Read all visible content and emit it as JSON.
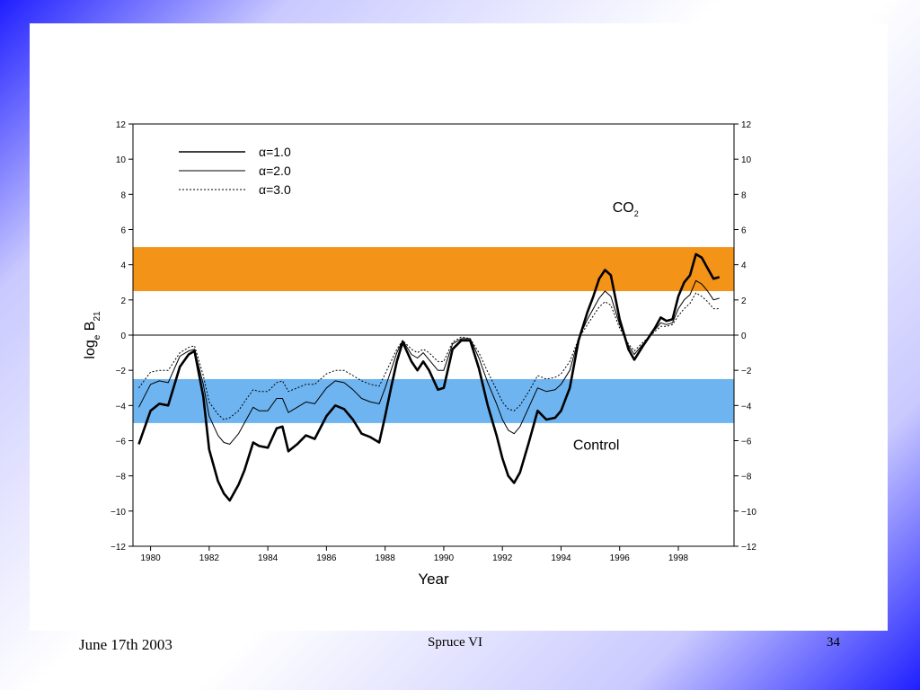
{
  "footer": {
    "date": "June 17th 2003",
    "center": "Spruce  VI",
    "page": "34"
  },
  "colors": {
    "band_high": "#F39317",
    "band_low": "#6EB4F0",
    "background_gradient": "#1f1fff"
  },
  "chart_data": {
    "type": "line",
    "title": "",
    "xlabel": "Year",
    "ylabel_parts": {
      "main": "log",
      "sub1": "e",
      "mid": " B",
      "sub2": "21"
    },
    "xlim": [
      1979.4,
      1999.9
    ],
    "ylim": [
      -12,
      12
    ],
    "x_ticks": [
      1980,
      1982,
      1984,
      1986,
      1988,
      1990,
      1992,
      1994,
      1996,
      1998
    ],
    "y_ticks": [
      -12,
      -10,
      -8,
      -6,
      -4,
      -2,
      0,
      2,
      4,
      6,
      8,
      10,
      12
    ],
    "grid": false,
    "legend_position": "top-left",
    "bands": [
      {
        "from": 2.5,
        "to": 5.0,
        "color": "#F39317"
      },
      {
        "from": -5.0,
        "to": -2.5,
        "color": "#6EB4F0"
      }
    ],
    "annotations": [
      {
        "main": "CO",
        "sub": "2",
        "x": 1996.2,
        "y": 7.0
      },
      {
        "main": "Control",
        "x": 1995.2,
        "y": -6.5
      }
    ],
    "series": [
      {
        "name": "α=1.0",
        "style": "thick",
        "x": [
          1979.6,
          1980.0,
          1980.3,
          1980.6,
          1981.0,
          1981.3,
          1981.5,
          1981.8,
          1982.0,
          1982.3,
          1982.5,
          1982.7,
          1983.0,
          1983.2,
          1983.5,
          1983.7,
          1984.0,
          1984.3,
          1984.5,
          1984.7,
          1985.0,
          1985.3,
          1985.6,
          1986.0,
          1986.3,
          1986.6,
          1986.9,
          1987.2,
          1987.5,
          1987.8,
          1988.0,
          1988.2,
          1988.4,
          1988.6,
          1988.9,
          1989.1,
          1989.3,
          1989.5,
          1989.8,
          1990.0,
          1990.3,
          1990.6,
          1990.9,
          1991.2,
          1991.5,
          1991.8,
          1992.0,
          1992.2,
          1992.4,
          1992.6,
          1992.9,
          1993.2,
          1993.5,
          1993.8,
          1994.0,
          1994.3,
          1994.6,
          1994.9,
          1995.1,
          1995.3,
          1995.5,
          1995.7,
          1996.0,
          1996.3,
          1996.5,
          1996.8,
          1997.0,
          1997.2,
          1997.4,
          1997.6,
          1997.8,
          1998.0,
          1998.2,
          1998.4,
          1998.6,
          1998.8,
          1999.0,
          1999.2,
          1999.4
        ],
        "y": [
          -6.2,
          -4.3,
          -3.9,
          -4.0,
          -1.8,
          -1.1,
          -0.9,
          -3.5,
          -6.5,
          -8.3,
          -9.0,
          -9.4,
          -8.5,
          -7.7,
          -6.1,
          -6.3,
          -6.4,
          -5.3,
          -5.2,
          -6.6,
          -6.2,
          -5.7,
          -5.9,
          -4.6,
          -4.0,
          -4.2,
          -4.8,
          -5.6,
          -5.8,
          -6.1,
          -4.6,
          -3.0,
          -1.5,
          -0.4,
          -1.5,
          -2.0,
          -1.5,
          -2.0,
          -3.1,
          -3.0,
          -0.8,
          -0.3,
          -0.3,
          -1.9,
          -4.0,
          -5.7,
          -7.0,
          -8.0,
          -8.4,
          -7.8,
          -6.1,
          -4.3,
          -4.8,
          -4.7,
          -4.3,
          -3.0,
          -0.3,
          1.3,
          2.2,
          3.2,
          3.7,
          3.4,
          0.9,
          -0.8,
          -1.4,
          -0.6,
          -0.1,
          0.4,
          1.0,
          0.8,
          0.9,
          2.2,
          3.0,
          3.4,
          4.6,
          4.4,
          3.8,
          3.2,
          3.3
        ]
      },
      {
        "name": "α=2.0",
        "style": "thin",
        "x": [
          1979.6,
          1980.0,
          1980.3,
          1980.6,
          1981.0,
          1981.3,
          1981.5,
          1981.8,
          1982.0,
          1982.3,
          1982.5,
          1982.7,
          1983.0,
          1983.2,
          1983.5,
          1983.7,
          1984.0,
          1984.3,
          1984.5,
          1984.7,
          1985.0,
          1985.3,
          1985.6,
          1986.0,
          1986.3,
          1986.6,
          1986.9,
          1987.2,
          1987.5,
          1987.8,
          1988.0,
          1988.2,
          1988.4,
          1988.6,
          1988.9,
          1989.1,
          1989.3,
          1989.5,
          1989.8,
          1990.0,
          1990.3,
          1990.6,
          1990.9,
          1991.2,
          1991.5,
          1991.8,
          1992.0,
          1992.2,
          1992.4,
          1992.6,
          1992.9,
          1993.2,
          1993.5,
          1993.8,
          1994.0,
          1994.3,
          1994.6,
          1994.9,
          1995.1,
          1995.3,
          1995.5,
          1995.7,
          1996.0,
          1996.3,
          1996.5,
          1996.8,
          1997.0,
          1997.2,
          1997.4,
          1997.6,
          1997.8,
          1998.0,
          1998.2,
          1998.4,
          1998.6,
          1998.8,
          1999.0,
          1999.2,
          1999.4
        ],
        "y": [
          -4.1,
          -2.8,
          -2.6,
          -2.7,
          -1.2,
          -0.9,
          -0.8,
          -2.8,
          -4.6,
          -5.7,
          -6.1,
          -6.2,
          -5.6,
          -5.0,
          -4.1,
          -4.3,
          -4.3,
          -3.6,
          -3.6,
          -4.4,
          -4.1,
          -3.8,
          -3.9,
          -3.0,
          -2.6,
          -2.7,
          -3.1,
          -3.6,
          -3.8,
          -3.9,
          -3.0,
          -2.0,
          -1.0,
          -0.3,
          -1.1,
          -1.3,
          -1.0,
          -1.4,
          -2.0,
          -2.0,
          -0.5,
          -0.2,
          -0.2,
          -1.3,
          -2.7,
          -3.9,
          -4.8,
          -5.4,
          -5.6,
          -5.2,
          -4.1,
          -3.0,
          -3.2,
          -3.1,
          -2.8,
          -2.0,
          -0.2,
          0.9,
          1.5,
          2.1,
          2.5,
          2.2,
          0.6,
          -0.6,
          -1.1,
          -0.5,
          -0.1,
          0.3,
          0.7,
          0.6,
          0.7,
          1.5,
          2.0,
          2.3,
          3.1,
          2.9,
          2.5,
          2.0,
          2.1
        ]
      },
      {
        "name": "α=3.0",
        "style": "dotted",
        "x": [
          1979.6,
          1980.0,
          1980.3,
          1980.6,
          1981.0,
          1981.3,
          1981.5,
          1981.8,
          1982.0,
          1982.3,
          1982.5,
          1982.7,
          1983.0,
          1983.2,
          1983.5,
          1983.7,
          1984.0,
          1984.3,
          1984.5,
          1984.7,
          1985.0,
          1985.3,
          1985.6,
          1986.0,
          1986.3,
          1986.6,
          1986.9,
          1987.2,
          1987.5,
          1987.8,
          1988.0,
          1988.2,
          1988.4,
          1988.6,
          1988.9,
          1989.1,
          1989.3,
          1989.5,
          1989.8,
          1990.0,
          1990.3,
          1990.6,
          1990.9,
          1991.2,
          1991.5,
          1991.8,
          1992.0,
          1992.2,
          1992.4,
          1992.6,
          1992.9,
          1993.2,
          1993.5,
          1993.8,
          1994.0,
          1994.3,
          1994.6,
          1994.9,
          1995.1,
          1995.3,
          1995.5,
          1995.7,
          1996.0,
          1996.3,
          1996.5,
          1996.8,
          1997.0,
          1997.2,
          1997.4,
          1997.6,
          1997.8,
          1998.0,
          1998.2,
          1998.4,
          1998.6,
          1998.8,
          1999.0,
          1999.2,
          1999.4
        ],
        "y": [
          -3.0,
          -2.1,
          -2.0,
          -2.0,
          -1.0,
          -0.7,
          -0.6,
          -2.3,
          -3.8,
          -4.5,
          -4.8,
          -4.7,
          -4.3,
          -3.8,
          -3.1,
          -3.2,
          -3.2,
          -2.7,
          -2.6,
          -3.2,
          -3.0,
          -2.8,
          -2.8,
          -2.2,
          -2.0,
          -2.0,
          -2.3,
          -2.6,
          -2.8,
          -2.9,
          -2.2,
          -1.5,
          -0.8,
          -0.3,
          -0.8,
          -1.0,
          -0.8,
          -1.0,
          -1.5,
          -1.5,
          -0.4,
          -0.1,
          -0.2,
          -1.0,
          -2.1,
          -3.1,
          -3.8,
          -4.2,
          -4.3,
          -4.0,
          -3.2,
          -2.3,
          -2.5,
          -2.4,
          -2.2,
          -1.5,
          -0.2,
          0.6,
          1.1,
          1.6,
          1.9,
          1.7,
          0.4,
          -0.5,
          -0.9,
          -0.4,
          -0.1,
          0.2,
          0.5,
          0.5,
          0.6,
          1.1,
          1.5,
          1.8,
          2.4,
          2.2,
          1.9,
          1.5,
          1.5
        ]
      }
    ]
  }
}
